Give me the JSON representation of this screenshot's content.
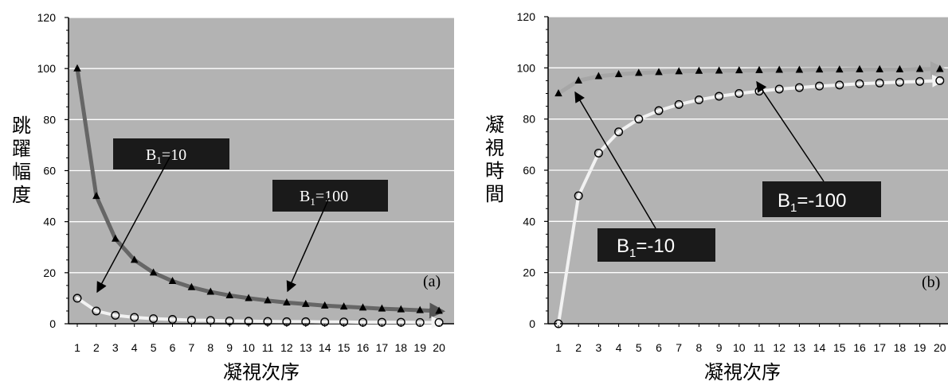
{
  "chart_data": [
    {
      "type": "scatter",
      "panel_label": "(a)",
      "xlabel": "凝視次序",
      "ylabel": "跳躍幅度",
      "ylim": [
        0,
        120
      ],
      "yticks": [
        0,
        20,
        40,
        60,
        80,
        100,
        120
      ],
      "x": [
        1,
        2,
        3,
        4,
        5,
        6,
        7,
        8,
        9,
        10,
        11,
        12,
        13,
        14,
        15,
        16,
        17,
        18,
        19,
        20
      ],
      "grid": true,
      "series": [
        {
          "marker": "triangle",
          "color": "#000000",
          "values": [
            100,
            50,
            33.3,
            25,
            20,
            16.7,
            14.3,
            12.5,
            11.1,
            10,
            9.1,
            8.3,
            7.7,
            7.1,
            6.7,
            6.3,
            5.9,
            5.6,
            5.3,
            5
          ]
        },
        {
          "marker": "circle",
          "color": "#000000",
          "values": [
            10,
            5,
            3.3,
            2.5,
            2,
            1.7,
            1.4,
            1.3,
            1.1,
            1,
            0.9,
            0.8,
            0.8,
            0.7,
            0.7,
            0.6,
            0.6,
            0.6,
            0.5,
            0.5
          ]
        }
      ],
      "annotations": [
        {
          "label": "B",
          "sub": "1",
          "eq": "=10"
        },
        {
          "label": "B",
          "sub": "1",
          "eq": "=100"
        }
      ],
      "colors": {
        "plot_bg": "#b3b3b3",
        "fit_dark": "#666666",
        "fit_light": "#f2f2f2",
        "label_box": "#1a1a1a"
      }
    },
    {
      "type": "scatter",
      "panel_label": "(b)",
      "xlabel": "凝視次序",
      "ylabel": "凝視時間",
      "ylim": [
        0,
        120
      ],
      "yticks": [
        0,
        20,
        40,
        60,
        80,
        100,
        120
      ],
      "x": [
        1,
        2,
        3,
        4,
        5,
        6,
        7,
        8,
        9,
        10,
        11,
        12,
        13,
        14,
        15,
        16,
        17,
        18,
        19,
        20
      ],
      "grid": true,
      "series": [
        {
          "marker": "triangle",
          "color": "#000000",
          "values": [
            90,
            95,
            96.7,
            97.5,
            98,
            98.3,
            98.6,
            98.8,
            98.9,
            99,
            99.1,
            99.2,
            99.2,
            99.3,
            99.3,
            99.4,
            99.4,
            99.4,
            99.5,
            99.5
          ]
        },
        {
          "marker": "circle",
          "color": "#000000",
          "values": [
            0,
            50,
            66.7,
            75,
            80,
            83.3,
            85.7,
            87.5,
            88.9,
            90,
            90.9,
            91.7,
            92.3,
            92.9,
            93.3,
            93.8,
            94.1,
            94.4,
            94.7,
            95
          ]
        }
      ],
      "annotations": [
        {
          "label": "B",
          "sub": "1",
          "eq": "=-10"
        },
        {
          "label": "B",
          "sub": "1",
          "eq": "=-100"
        }
      ],
      "colors": {
        "plot_bg": "#b3b3b3",
        "fit_dark": "#999999",
        "fit_light": "#f2f2f2",
        "label_box": "#1a1a1a"
      }
    }
  ]
}
